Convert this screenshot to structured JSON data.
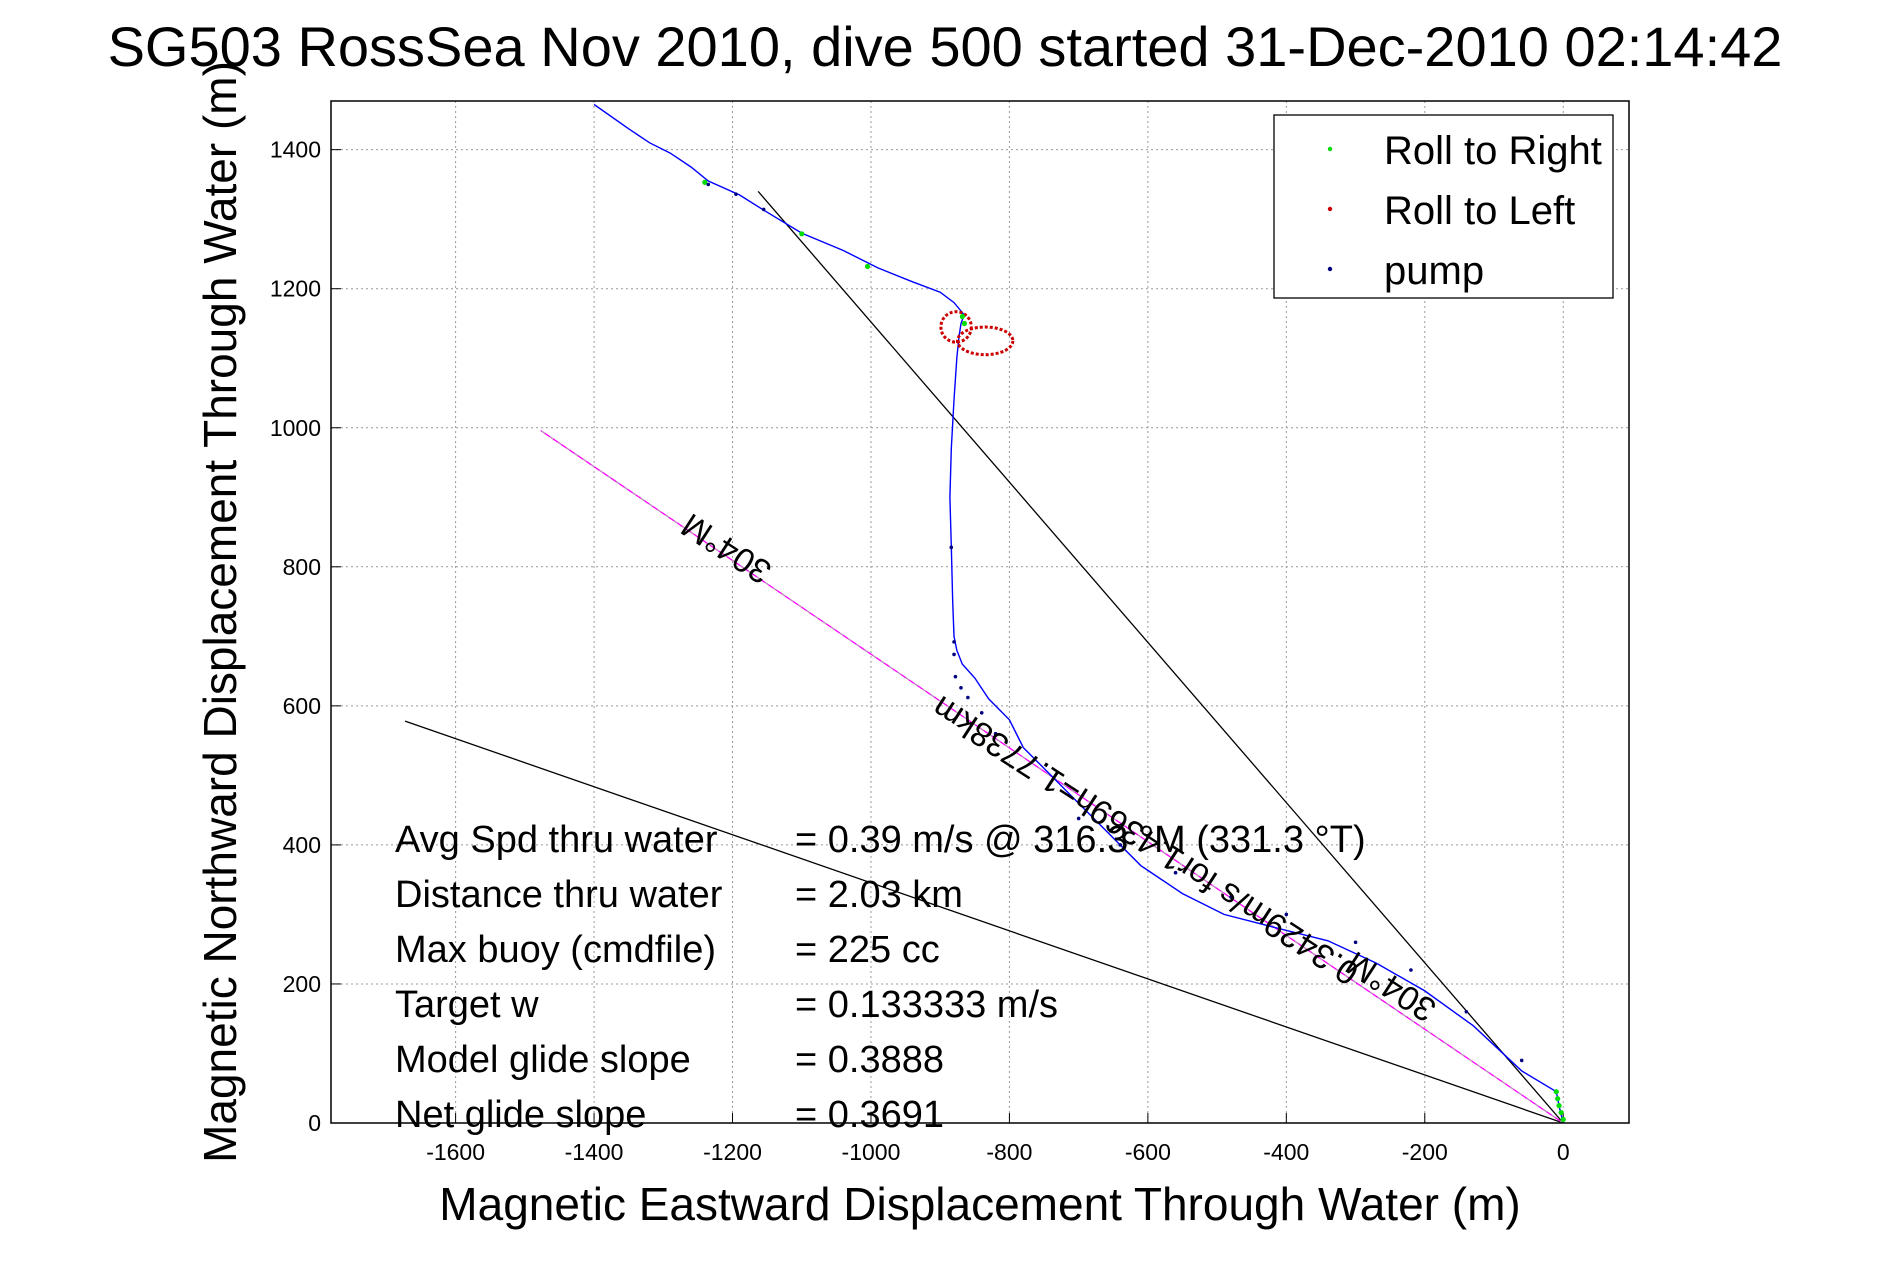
{
  "chart_data": {
    "type": "line",
    "title": "SG503 RossSea Nov 2010, dive 500 started 31-Dec-2010 02:14:42",
    "xlabel": "Magnetic Eastward Displacement Through Water (m)",
    "ylabel": "Magnetic Northward Displacement Through Water (m)",
    "xlim": [
      -1780,
      95
    ],
    "ylim": [
      0,
      1470
    ],
    "xticks": [
      -1600,
      -1400,
      -1200,
      -1000,
      -800,
      -600,
      -400,
      -200,
      0
    ],
    "yticks": [
      0,
      200,
      400,
      600,
      800,
      1000,
      1200,
      1400
    ],
    "grid": true,
    "legend_position": "top-right",
    "legend": [
      {
        "label": "Roll to Right",
        "color": "#00dd00"
      },
      {
        "label": "Roll to Left",
        "color": "#cc0000"
      },
      {
        "label": "pump",
        "color": "#000080"
      }
    ],
    "track": {
      "color": "#0000ff",
      "x": [
        0,
        -5,
        -10,
        -60,
        -130,
        -200,
        -270,
        -340,
        -420,
        -490,
        -550,
        -610,
        -660,
        -700,
        -740,
        -780,
        -800,
        -830,
        -850,
        -868,
        -876,
        -880,
        -882,
        -884,
        -886,
        -884,
        -880,
        -876,
        -873,
        -870,
        -867,
        -865,
        -880,
        -900,
        -940,
        -990,
        -1040,
        -1100,
        -1150,
        -1190,
        -1235,
        -1260,
        -1290,
        -1320,
        -1350,
        -1400
      ],
      "y": [
        0,
        20,
        45,
        75,
        140,
        190,
        230,
        262,
        282,
        300,
        330,
        370,
        420,
        460,
        500,
        540,
        580,
        610,
        640,
        660,
        680,
        700,
        750,
        830,
        900,
        970,
        1040,
        1100,
        1130,
        1150,
        1158,
        1162,
        1180,
        1195,
        1210,
        1230,
        1255,
        1280,
        1310,
        1335,
        1355,
        1375,
        1395,
        1410,
        1430,
        1465
      ]
    },
    "roll_left_loops": [
      {
        "cx": -877,
        "cy": 1145,
        "rx": 22,
        "ry": 22
      },
      {
        "cx": -835,
        "cy": 1125,
        "rx": 40,
        "ry": 20
      }
    ],
    "roll_right_points": {
      "x": [
        -1240,
        -1100,
        -1005,
        -868,
        -865,
        0,
        -3,
        -6,
        -8,
        -10
      ],
      "y": [
        1353,
        1279,
        1232,
        1160,
        1150,
        5,
        15,
        25,
        35,
        45
      ]
    },
    "pump_points": {
      "x": [
        -1235,
        -1195,
        -1155,
        -884,
        -880,
        -880,
        -878,
        -870,
        -860,
        -840,
        -820,
        -700,
        -640,
        -560,
        -480,
        -400,
        -300,
        -220,
        -140,
        -60
      ],
      "y": [
        1350,
        1336,
        1314,
        828,
        692,
        674,
        642,
        626,
        612,
        590,
        560,
        438,
        400,
        360,
        325,
        300,
        260,
        220,
        160,
        90
      ]
    },
    "lines": [
      {
        "color": "#000000",
        "x": [
          0,
          -1163
        ],
        "y": [
          0,
          1340
        ]
      },
      {
        "color": "#000000",
        "x": [
          0,
          -1673
        ],
        "y": [
          0,
          578
        ]
      },
      {
        "color": "#ff00ff",
        "x": [
          0,
          -1477
        ],
        "y": [
          0,
          996
        ]
      },
      {
        "color": "#aaaaaa",
        "dashed": true,
        "x": [
          0,
          -1477
        ],
        "y": [
          0,
          996
        ]
      }
    ],
    "annotations": [
      {
        "text": "304°M",
        "x": -1200,
        "y": 840,
        "rotation": 213
      },
      {
        "text": "0.3429m/s for1.4369h=1.7738km",
        "x": -595,
        "y": 420,
        "rotation": 213
      },
      {
        "text": "304°M",
        "x": -240,
        "y": 210,
        "rotation": 213
      }
    ],
    "stats": [
      {
        "label": "Avg Spd thru water",
        "value": "=  0.39 m/s @ 316.3 °M (331.3 °T)"
      },
      {
        "label": "Distance thru water",
        "value": "=  2.03 km"
      },
      {
        "label": "Max buoy (cmdfile)",
        "value": "= 225 cc"
      },
      {
        "label": "Target w",
        "value": "= 0.133333 m/s"
      },
      {
        "label": "Model glide slope",
        "value": "= 0.3888"
      },
      {
        "label": "Net glide slope",
        "value": "= 0.3691"
      }
    ]
  }
}
